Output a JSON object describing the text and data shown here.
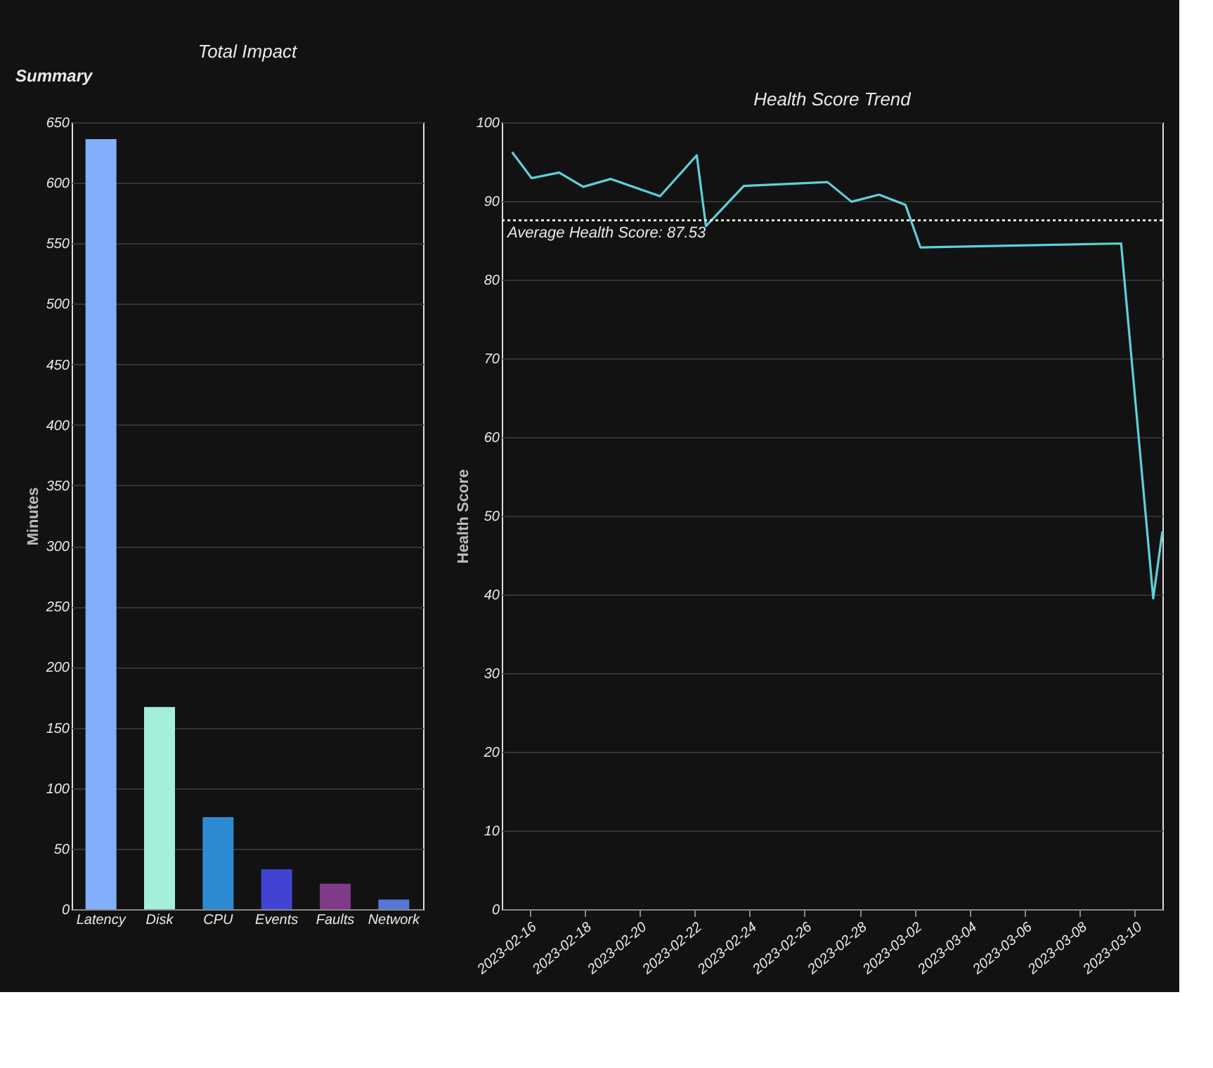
{
  "chart_data": [
    {
      "type": "bar",
      "title": "Total Impact",
      "ylabel": "Minutes",
      "annotations": [
        "Summary"
      ],
      "categories": [
        "Latency",
        "Disk",
        "CPU",
        "Events",
        "Faults",
        "Network"
      ],
      "values": [
        636,
        167,
        76,
        33,
        21,
        8
      ],
      "colors": [
        "#82aefc",
        "#a3efdc",
        "#2d8bd3",
        "#4343d3",
        "#7f3b87",
        "#5677d6"
      ],
      "ylim": [
        0,
        650
      ],
      "yticks": [
        0,
        50,
        100,
        150,
        200,
        250,
        300,
        350,
        400,
        450,
        500,
        550,
        600,
        650
      ],
      "grid": "y",
      "legend": false
    },
    {
      "type": "line",
      "title": "Health Score Trend",
      "ylabel": "Health Score",
      "x": [
        "2023-02-15T09:00",
        "2023-02-16T02:00",
        "2023-02-17T02:00",
        "2023-02-17T23:00",
        "2023-02-18T23:00",
        "2023-02-20T18:00",
        "2023-02-22T02:00",
        "2023-02-22T10:00",
        "2023-02-23T19:00",
        "2023-02-26T20:00",
        "2023-02-27T17:00",
        "2023-02-28T17:00",
        "2023-03-01T16:00",
        "2023-03-02T05:00",
        "2023-03-09T12:00",
        "2023-03-10T16:00",
        "2023-03-11"
      ],
      "series": [
        {
          "color": "#5fd0d8",
          "values": [
            96.2,
            92.9,
            93.6,
            91.8,
            92.8,
            90.6,
            95.8,
            86.8,
            91.9,
            92.4,
            89.9,
            90.8,
            89.5,
            84.1,
            84.6,
            39.5,
            48
          ]
        }
      ],
      "xlim": [
        "2023-02-15",
        "2023-03-11"
      ],
      "xticks": [
        "2023-02-16",
        "2023-02-18",
        "2023-02-20",
        "2023-02-22",
        "2023-02-24",
        "2023-02-26",
        "2023-02-28",
        "2023-03-02",
        "2023-03-04",
        "2023-03-06",
        "2023-03-08",
        "2023-03-10"
      ],
      "ylim": [
        0,
        100
      ],
      "yticks": [
        0,
        10,
        20,
        30,
        40,
        50,
        60,
        70,
        80,
        90,
        100
      ],
      "ref_lines": [
        {
          "axis": "y",
          "value": 87.53,
          "label": "Average Health Score: 87.53",
          "color": "#ffffff",
          "line_style": "dotted"
        }
      ],
      "grid": "y",
      "line_style": "solid",
      "marker": "none"
    }
  ]
}
